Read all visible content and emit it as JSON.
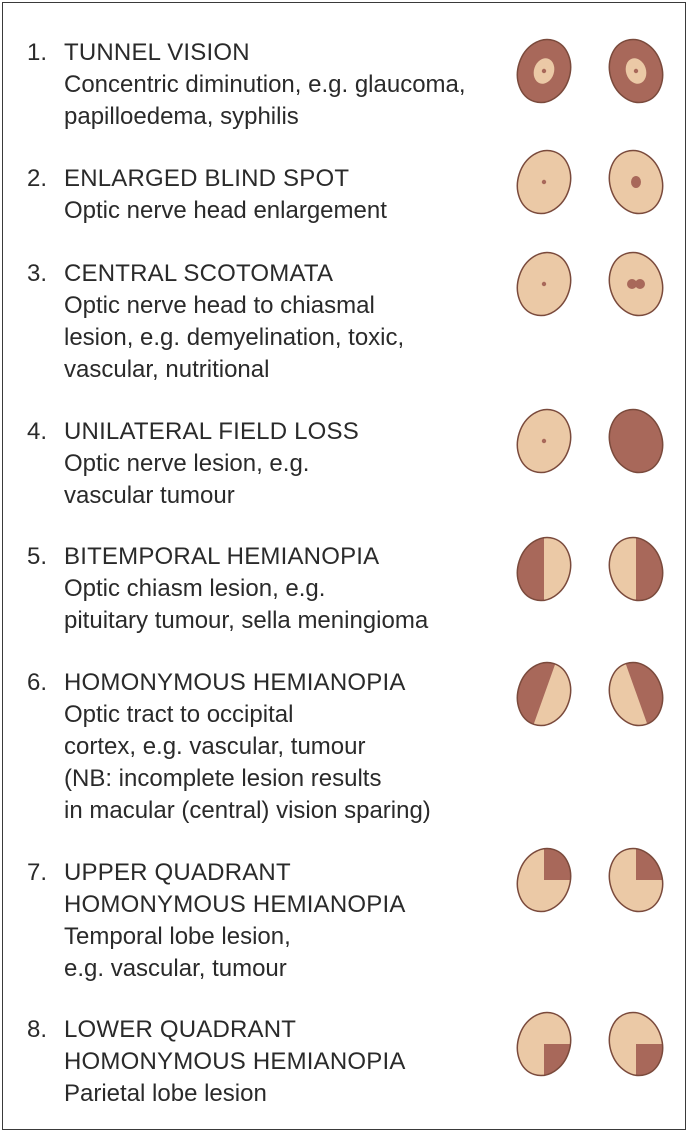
{
  "colors": {
    "field": "#ebc9a6",
    "loss": "#a8685a",
    "outline": "#7a4a3c",
    "text": "#2a2a2a"
  },
  "entries": [
    {
      "num": "1.",
      "heading": "TUNNEL VISION",
      "desc": [
        "Concentric diminution, e.g. glaucoma,",
        "papilloedema, syphilis"
      ],
      "left_eye": "tunnel-field",
      "right_eye": "tunnel-field"
    },
    {
      "num": "2.",
      "heading": "ENLARGED BLIND SPOT",
      "desc": [
        "Optic nerve head enlargement"
      ],
      "left_eye": "normal-field",
      "right_eye": "enlarged-blind-spot-field"
    },
    {
      "num": "3.",
      "heading": "CENTRAL SCOTOMATA",
      "desc": [
        "Optic nerve head to chiasmal",
        "lesion, e.g. demyelination, toxic,",
        "vascular, nutritional"
      ],
      "left_eye": "normal-field",
      "right_eye": "central-scotoma-field"
    },
    {
      "num": "4.",
      "heading": "UNILATERAL FIELD LOSS",
      "desc": [
        "Optic nerve lesion, e.g.",
        "vascular tumour"
      ],
      "left_eye": "normal-field",
      "right_eye": "total-loss-field"
    },
    {
      "num": "5.",
      "heading": "BITEMPORAL HEMIANOPIA",
      "desc": [
        "Optic chiasm lesion, e.g.",
        "pituitary tumour, sella meningioma"
      ],
      "left_eye": "left-half-loss-field",
      "right_eye": "right-half-loss-field"
    },
    {
      "num": "6.",
      "heading": "HOMONYMOUS HEMIANOPIA",
      "desc": [
        "Optic tract to occipital",
        "cortex, e.g. vascular, tumour",
        "(NB: incomplete lesion results",
        "in macular (central) vision sparing)"
      ],
      "left_eye": "left-oblique-loss-field",
      "right_eye": "right-oblique-loss-field"
    },
    {
      "num": "7.",
      "heading": "UPPER QUADRANT",
      "heading2": "HOMONYMOUS HEMIANOPIA",
      "desc": [
        "Temporal lobe lesion,",
        "e.g. vascular, tumour"
      ],
      "left_eye": "upper-right-quadrant-loss-field",
      "right_eye": "upper-right-quadrant-loss-field"
    },
    {
      "num": "8.",
      "heading": "LOWER QUADRANT",
      "heading2": "HOMONYMOUS HEMIANOPIA",
      "desc": [
        "Parietal lobe lesion"
      ],
      "left_eye": "lower-right-quadrant-loss-field",
      "right_eye": "lower-right-quadrant-loss-field"
    }
  ]
}
